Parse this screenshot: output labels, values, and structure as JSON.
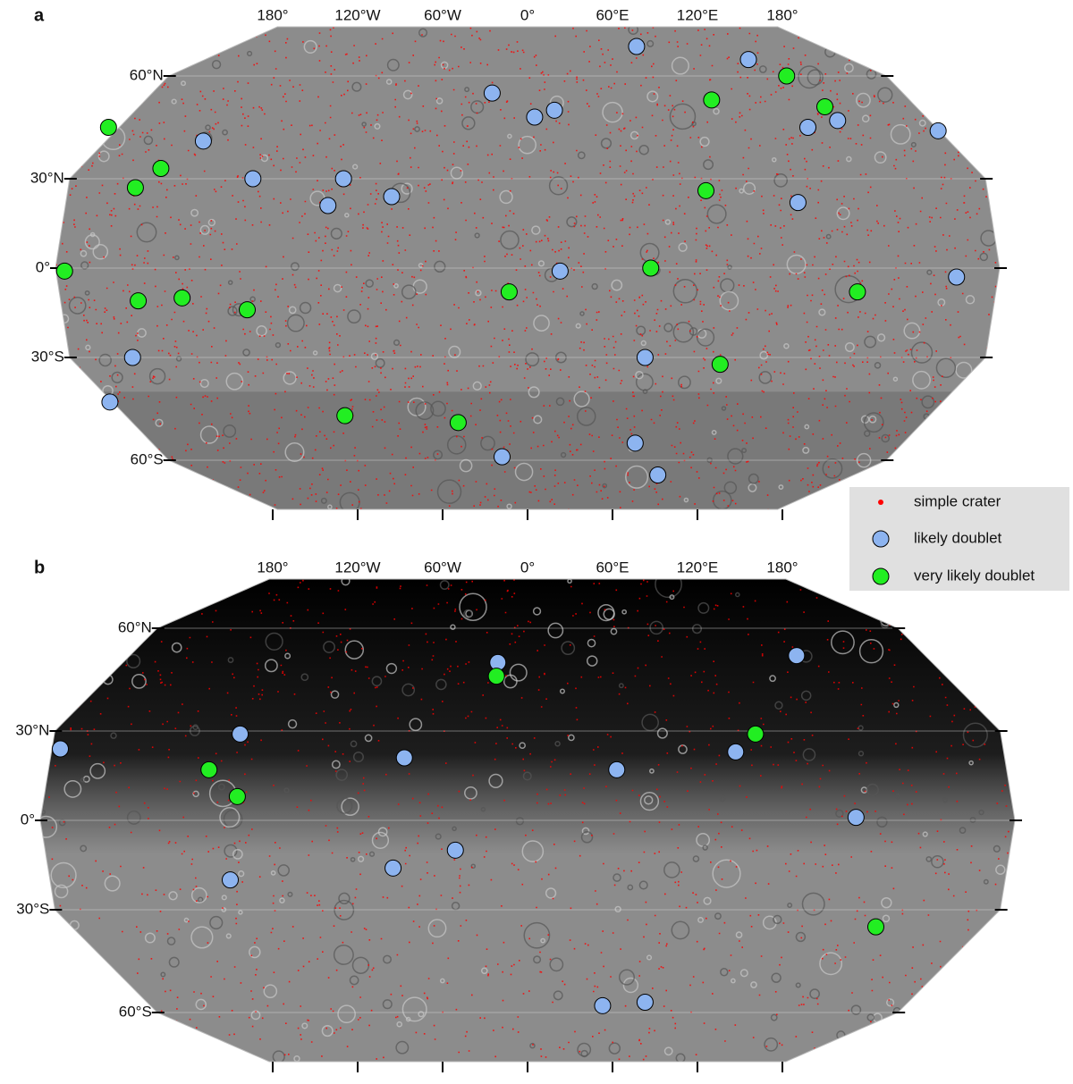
{
  "panels": [
    {
      "label": "a",
      "lon_ticks": [
        {
          "value": -180,
          "label": "180°"
        },
        {
          "value": -120,
          "label": "120°W"
        },
        {
          "value": -60,
          "label": "60°W"
        },
        {
          "value": 0,
          "label": "0°"
        },
        {
          "value": 60,
          "label": "60°E"
        },
        {
          "value": 120,
          "label": "120°E"
        },
        {
          "value": 180,
          "label": "180°"
        }
      ],
      "lat_ticks": [
        {
          "value": 60,
          "label": "60°N"
        },
        {
          "value": 30,
          "label": "30°N"
        },
        {
          "value": 0,
          "label": "0°"
        },
        {
          "value": -30,
          "label": "30°S"
        },
        {
          "value": -60,
          "label": "60°S"
        }
      ],
      "likely_doublets": [
        [
          77,
          78
        ],
        [
          156,
          70
        ],
        [
          -25,
          55
        ],
        [
          5,
          48
        ],
        [
          19,
          50
        ],
        [
          198,
          45
        ],
        [
          219,
          47
        ],
        [
          290,
          44
        ],
        [
          -229,
          41
        ],
        [
          -194,
          30
        ],
        [
          -130,
          30
        ],
        [
          -141,
          21
        ],
        [
          -96,
          24
        ],
        [
          191,
          22
        ],
        [
          23,
          -1
        ],
        [
          303,
          -3
        ],
        [
          -279,
          -30
        ],
        [
          83,
          -30
        ],
        [
          -295,
          -43
        ],
        [
          76,
          -55
        ],
        [
          -18,
          -59
        ],
        [
          92,
          -69
        ]
      ],
      "very_likely_doublets": [
        [
          183,
          60
        ],
        [
          210,
          51
        ],
        [
          130,
          53
        ],
        [
          -296,
          45
        ],
        [
          -259,
          33
        ],
        [
          -277,
          27
        ],
        [
          126,
          26
        ],
        [
          -327,
          -1
        ],
        [
          87,
          0
        ],
        [
          -275,
          -11
        ],
        [
          -244,
          -10
        ],
        [
          -198,
          -14
        ],
        [
          -13,
          -8
        ],
        [
          233,
          -8
        ],
        [
          136,
          -32
        ],
        [
          -129,
          -47
        ],
        [
          -49,
          -49
        ]
      ]
    },
    {
      "label": "b",
      "lon_ticks": [
        {
          "value": -180,
          "label": "180°"
        },
        {
          "value": -120,
          "label": "120°W"
        },
        {
          "value": -60,
          "label": "60°W"
        },
        {
          "value": 0,
          "label": "0°"
        },
        {
          "value": 60,
          "label": "60°E"
        },
        {
          "value": 120,
          "label": "120°E"
        },
        {
          "value": 180,
          "label": "180°"
        }
      ],
      "lat_ticks": [
        {
          "value": 60,
          "label": "60°N"
        },
        {
          "value": 30,
          "label": "30°N"
        },
        {
          "value": 0,
          "label": "0°"
        },
        {
          "value": -30,
          "label": "30°S"
        },
        {
          "value": -60,
          "label": "60°S"
        }
      ],
      "likely_doublets": [
        [
          -21,
          50
        ],
        [
          190,
          52
        ],
        [
          -330,
          24
        ],
        [
          -203,
          29
        ],
        [
          -87,
          21
        ],
        [
          63,
          17
        ],
        [
          147,
          23
        ],
        [
          232,
          1
        ],
        [
          -51,
          -10
        ],
        [
          -95,
          -16
        ],
        [
          -210,
          -20
        ],
        [
          53,
          -58
        ],
        [
          83,
          -57
        ]
      ],
      "very_likely_doublets": [
        [
          -22,
          46
        ],
        [
          161,
          29
        ],
        [
          -225,
          17
        ],
        [
          -205,
          8
        ],
        [
          246,
          -35
        ]
      ]
    }
  ],
  "legend": {
    "simple_crater": "simple crater",
    "likely_doublet": "likely doublet",
    "very_likely_doublet": "very likely doublet"
  },
  "colors": {
    "simple_crater": "#ff0000",
    "likely_doublet": "#8db4f0",
    "very_likely_doublet": "#22ee22"
  }
}
